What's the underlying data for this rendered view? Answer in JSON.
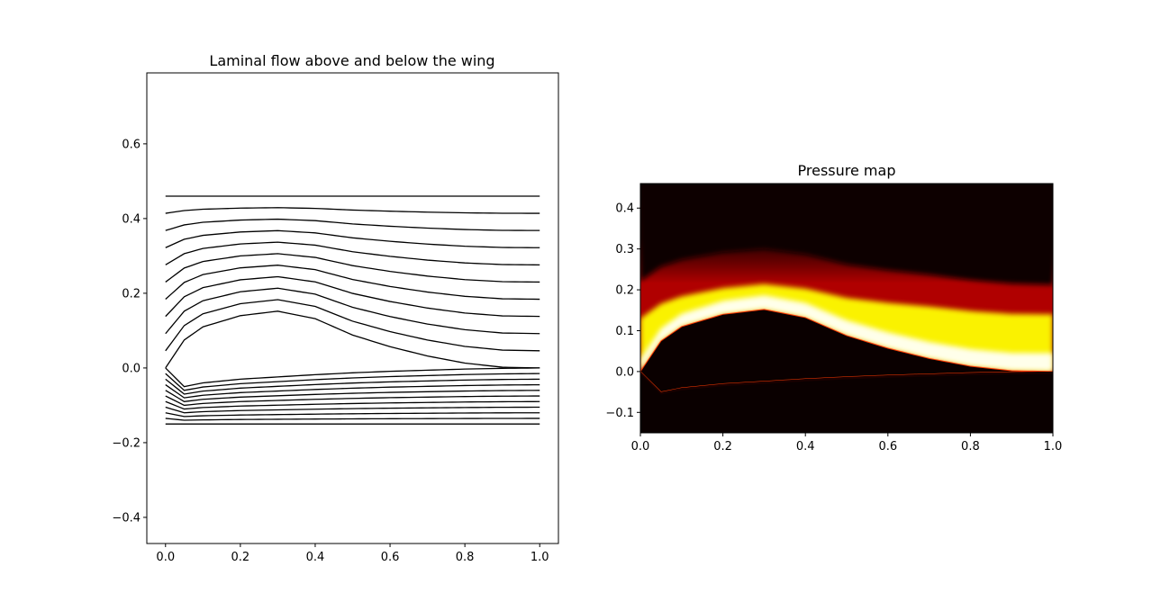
{
  "chart_data": [
    {
      "type": "line",
      "title": "Laminal flow above and below the wing",
      "xlabel": "",
      "ylabel": "",
      "xlim": [
        -0.05,
        1.05
      ],
      "ylim": [
        -0.47,
        0.79
      ],
      "xticks": [
        0.0,
        0.2,
        0.4,
        0.6,
        0.8,
        1.0
      ],
      "xtick_labels": [
        "0.0",
        "0.2",
        "0.4",
        "0.6",
        "0.8",
        "1.0"
      ],
      "yticks": [
        -0.4,
        -0.2,
        0.0,
        0.2,
        0.4,
        0.6
      ],
      "ytick_labels": [
        "−0.4",
        "−0.2",
        "0.0",
        "0.2",
        "0.4",
        "0.6"
      ],
      "grid": false,
      "line_color": "#000000",
      "x": [
        0.0,
        0.05,
        0.1,
        0.2,
        0.3,
        0.4,
        0.5,
        0.6,
        0.7,
        0.8,
        0.9,
        1.0
      ],
      "upper_camber": [
        0.0,
        0.075,
        0.11,
        0.14,
        0.152,
        0.132,
        0.088,
        0.057,
        0.032,
        0.013,
        0.002,
        0.0
      ],
      "upper_top": 0.46,
      "upper_count": 11,
      "lower_camber": [
        0.0,
        -0.05,
        -0.04,
        -0.03,
        -0.024,
        -0.018,
        -0.013,
        -0.009,
        -0.006,
        -0.003,
        -0.001,
        0.0
      ],
      "lower_bottom": -0.15,
      "lower_count": 11
    },
    {
      "type": "heatmap",
      "title": "Pressure map",
      "xlabel": "",
      "ylabel": "",
      "xlim": [
        0.0,
        1.0
      ],
      "ylim": [
        -0.15,
        0.46
      ],
      "xticks": [
        0.0,
        0.2,
        0.4,
        0.6,
        0.8,
        1.0
      ],
      "xtick_labels": [
        "0.0",
        "0.2",
        "0.4",
        "0.6",
        "0.8",
        "1.0"
      ],
      "yticks": [
        -0.1,
        0.0,
        0.1,
        0.2,
        0.3,
        0.4
      ],
      "ytick_labels": [
        "−0.1",
        "0.0",
        "0.1",
        "0.2",
        "0.3",
        "0.4"
      ],
      "colormap": "hot",
      "colors": {
        "black": "#0a0000",
        "red": "#ff0000",
        "yellow": "#ffff00",
        "white": "#ffffff"
      },
      "wing_x": [
        0.0,
        0.05,
        0.1,
        0.2,
        0.3,
        0.4,
        0.5,
        0.6,
        0.7,
        0.8,
        0.9,
        1.0
      ],
      "wing_upper": [
        0.0,
        0.075,
        0.11,
        0.14,
        0.152,
        0.132,
        0.088,
        0.057,
        0.032,
        0.013,
        0.002,
        0.0
      ],
      "wing_lower": [
        0.0,
        -0.05,
        -0.04,
        -0.03,
        -0.024,
        -0.018,
        -0.013,
        -0.009,
        -0.006,
        -0.003,
        -0.001,
        0.0
      ],
      "red_band_top": [
        0.21,
        0.245,
        0.262,
        0.28,
        0.288,
        0.275,
        0.25,
        0.236,
        0.225,
        0.212,
        0.203,
        0.2
      ]
    }
  ]
}
